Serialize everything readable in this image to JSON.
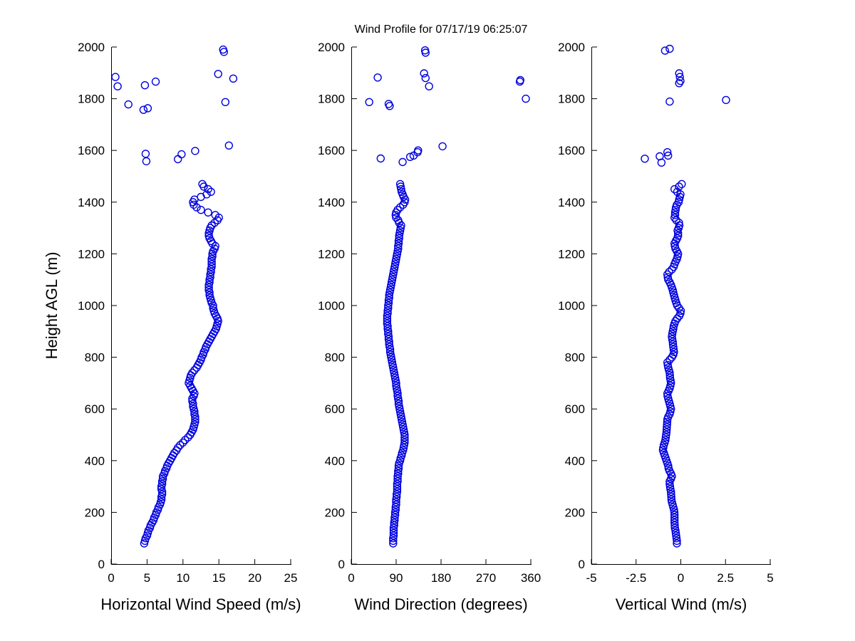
{
  "chart_data": {
    "type": "scatter",
    "title": "Wind Profile for  07/17/19 06:25:07",
    "ylabel": "Height AGL (m)",
    "ylim": [
      0,
      2000
    ],
    "yticks": [
      0,
      200,
      400,
      600,
      800,
      1000,
      1200,
      1400,
      1600,
      1800,
      2000
    ],
    "grid": "off",
    "legend": "none",
    "marker": "open-circle",
    "marker_color": "#0000e0",
    "axis_color": "#000000",
    "dense_heights": [
      80,
      90,
      100,
      110,
      120,
      130,
      140,
      150,
      160,
      170,
      180,
      190,
      200,
      210,
      220,
      230,
      240,
      250,
      260,
      270,
      280,
      290,
      300,
      310,
      320,
      330,
      340,
      350,
      360,
      370,
      380,
      390,
      400,
      410,
      420,
      430,
      440,
      450,
      460,
      470,
      480,
      490,
      500,
      510,
      520,
      530,
      540,
      550,
      560,
      570,
      580,
      590,
      600,
      610,
      620,
      630,
      640,
      650,
      660,
      670,
      680,
      690,
      700,
      710,
      720,
      730,
      740,
      750,
      760,
      770,
      780,
      790,
      800,
      810,
      820,
      830,
      840,
      850,
      860,
      870,
      880,
      890,
      900,
      910,
      920,
      930,
      940,
      950,
      960,
      970,
      980,
      990,
      1000,
      1010,
      1020,
      1030,
      1040,
      1050,
      1060,
      1070,
      1080,
      1090,
      1100,
      1110,
      1120,
      1130,
      1140,
      1150,
      1160,
      1170,
      1180,
      1190,
      1200,
      1210,
      1220,
      1230,
      1240,
      1250,
      1260,
      1270,
      1280,
      1290,
      1300,
      1310,
      1320,
      1330,
      1340,
      1350,
      1360,
      1370,
      1380,
      1390,
      1400,
      1410,
      1420,
      1430,
      1440,
      1450,
      1460,
      1470
    ],
    "panels": [
      {
        "name": "horizontal-wind-speed",
        "xlabel": "Horizontal Wind Speed (m/s)",
        "xlim": [
          0,
          25
        ],
        "xticks": [
          0,
          5,
          10,
          15,
          20,
          25
        ],
        "dense_values": [
          4.6,
          4.7,
          4.8,
          5.0,
          5.1,
          5.2,
          5.4,
          5.5,
          5.7,
          5.9,
          6.0,
          6.2,
          6.3,
          6.5,
          6.6,
          6.8,
          6.9,
          7.0,
          7.0,
          7.1,
          7.1,
          7.0,
          7.0,
          7.1,
          7.1,
          7.2,
          7.2,
          7.4,
          7.5,
          7.7,
          7.8,
          8.0,
          8.2,
          8.4,
          8.6,
          8.8,
          9.1,
          9.3,
          9.6,
          10.0,
          10.3,
          10.7,
          11.0,
          11.2,
          11.4,
          11.5,
          11.6,
          11.7,
          11.7,
          11.7,
          11.6,
          11.6,
          11.5,
          11.4,
          11.4,
          11.3,
          11.3,
          11.5,
          11.6,
          11.4,
          11.2,
          11.0,
          10.8,
          10.9,
          11.0,
          11.1,
          11.3,
          11.6,
          11.9,
          12.1,
          12.3,
          12.5,
          12.6,
          12.8,
          12.9,
          13.1,
          13.2,
          13.4,
          13.6,
          13.8,
          14.0,
          14.2,
          14.4,
          14.6,
          14.7,
          14.8,
          14.9,
          14.8,
          14.6,
          14.4,
          14.3,
          14.2,
          14.2,
          14.0,
          13.9,
          13.8,
          13.7,
          13.7,
          13.6,
          13.6,
          13.6,
          13.7,
          13.7,
          13.8,
          13.8,
          13.9,
          13.9,
          14.0,
          14.0,
          14.0,
          14.0,
          14.1,
          14.1,
          14.2,
          14.4,
          14.5,
          14.1,
          13.9,
          13.7,
          13.6,
          13.6,
          13.7,
          13.8,
          14.0,
          14.4,
          14.8,
          15.0,
          14.5,
          13.5,
          12.5,
          11.9,
          11.5,
          11.4,
          11.6,
          12.5,
          13.3,
          13.9,
          13.5,
          12.9,
          12.7
        ],
        "sparse_points": [
          [
            4.9,
            1558
          ],
          [
            9.3,
            1566
          ],
          [
            9.8,
            1585
          ],
          [
            4.8,
            1587
          ],
          [
            11.7,
            1598
          ],
          [
            16.4,
            1619
          ],
          [
            4.5,
            1757
          ],
          [
            5.1,
            1763
          ],
          [
            2.4,
            1778
          ],
          [
            15.9,
            1787
          ],
          [
            0.9,
            1848
          ],
          [
            4.7,
            1852
          ],
          [
            6.2,
            1866
          ],
          [
            17.0,
            1878
          ],
          [
            0.6,
            1884
          ],
          [
            14.9,
            1896
          ],
          [
            15.7,
            1981
          ],
          [
            15.6,
            1990
          ]
        ]
      },
      {
        "name": "wind-direction",
        "xlabel": "Wind Direction (degrees)",
        "xlim": [
          0,
          360
        ],
        "xticks": [
          0,
          90,
          180,
          270,
          360
        ],
        "dense_values": [
          84,
          84,
          84,
          85,
          85,
          85,
          85,
          86,
          86,
          87,
          87,
          88,
          88,
          89,
          89,
          90,
          90,
          90,
          91,
          91,
          92,
          92,
          92,
          92,
          93,
          93,
          93,
          94,
          94,
          95,
          95,
          96,
          98,
          99,
          101,
          102,
          104,
          105,
          106,
          107,
          107,
          107,
          107,
          106,
          105,
          104,
          103,
          102,
          101,
          100,
          99,
          98,
          97,
          96,
          95,
          95,
          94,
          93,
          93,
          92,
          91,
          90,
          90,
          89,
          88,
          87,
          86,
          85,
          84,
          83,
          82,
          81,
          80,
          79,
          78,
          78,
          77,
          76,
          76,
          75,
          75,
          74,
          74,
          73,
          73,
          72,
          72,
          72,
          72,
          73,
          73,
          74,
          74,
          75,
          75,
          76,
          76,
          77,
          78,
          79,
          80,
          81,
          82,
          83,
          84,
          85,
          86,
          87,
          88,
          89,
          90,
          91,
          92,
          93,
          94,
          94,
          95,
          95,
          96,
          96,
          97,
          98,
          99,
          100,
          96,
          94,
          90,
          89,
          90,
          93,
          98,
          104,
          107,
          108,
          105,
          103,
          101,
          100,
          99,
          98
        ],
        "sparse_points": [
          [
            103,
            1555
          ],
          [
            59,
            1569
          ],
          [
            118,
            1575
          ],
          [
            125,
            1580
          ],
          [
            133,
            1593
          ],
          [
            134,
            1600
          ],
          [
            183,
            1616
          ],
          [
            77,
            1772
          ],
          [
            75,
            1780
          ],
          [
            36,
            1787
          ],
          [
            350,
            1800
          ],
          [
            156,
            1848
          ],
          [
            338,
            1866
          ],
          [
            339,
            1872
          ],
          [
            149,
            1880
          ],
          [
            53,
            1882
          ],
          [
            146,
            1898
          ],
          [
            149,
            1978
          ],
          [
            148,
            1987
          ]
        ]
      },
      {
        "name": "vertical-wind",
        "xlabel": "Vertical Wind (m/s)",
        "xlim": [
          -5,
          5
        ],
        "xticks": [
          -5,
          -2.5,
          0,
          2.5,
          5
        ],
        "dense_values": [
          -0.22,
          -0.22,
          -0.24,
          -0.26,
          -0.28,
          -0.3,
          -0.33,
          -0.34,
          -0.35,
          -0.35,
          -0.35,
          -0.35,
          -0.36,
          -0.38,
          -0.42,
          -0.46,
          -0.5,
          -0.52,
          -0.53,
          -0.54,
          -0.55,
          -0.58,
          -0.6,
          -0.62,
          -0.62,
          -0.55,
          -0.5,
          -0.55,
          -0.63,
          -0.68,
          -0.7,
          -0.75,
          -0.8,
          -0.85,
          -0.9,
          -0.95,
          -1.0,
          -0.98,
          -0.95,
          -0.9,
          -0.86,
          -0.84,
          -0.82,
          -0.8,
          -0.79,
          -0.78,
          -0.77,
          -0.76,
          -0.75,
          -0.7,
          -0.62,
          -0.58,
          -0.55,
          -0.58,
          -0.62,
          -0.66,
          -0.7,
          -0.74,
          -0.75,
          -0.68,
          -0.62,
          -0.58,
          -0.55,
          -0.57,
          -0.6,
          -0.61,
          -0.62,
          -0.66,
          -0.7,
          -0.73,
          -0.75,
          -0.62,
          -0.5,
          -0.42,
          -0.38,
          -0.4,
          -0.42,
          -0.44,
          -0.45,
          -0.48,
          -0.5,
          -0.48,
          -0.45,
          -0.42,
          -0.4,
          -0.35,
          -0.3,
          -0.2,
          -0.08,
          -0.02,
          0.0,
          -0.1,
          -0.2,
          -0.25,
          -0.3,
          -0.34,
          -0.38,
          -0.42,
          -0.45,
          -0.5,
          -0.55,
          -0.62,
          -0.7,
          -0.73,
          -0.75,
          -0.65,
          -0.5,
          -0.4,
          -0.35,
          -0.29,
          -0.22,
          -0.18,
          -0.15,
          -0.22,
          -0.3,
          -0.33,
          -0.35,
          -0.28,
          -0.2,
          -0.15,
          -0.15,
          -0.18,
          -0.12,
          -0.08,
          -0.1,
          -0.25,
          -0.35,
          -0.32,
          -0.32,
          -0.29,
          -0.27,
          -0.22,
          -0.12,
          -0.09,
          -0.05,
          -0.02,
          -0.2,
          -0.35,
          -0.1,
          0.05
        ],
        "sparse_points": [
          [
            -1.08,
            1553
          ],
          [
            -2.01,
            1568
          ],
          [
            -1.18,
            1577
          ],
          [
            -0.71,
            1580
          ],
          [
            -0.75,
            1593
          ],
          [
            -0.62,
            1789
          ],
          [
            2.53,
            1795
          ],
          [
            -0.09,
            1860
          ],
          [
            -0.02,
            1869
          ],
          [
            -0.05,
            1884
          ],
          [
            -0.09,
            1898
          ],
          [
            -0.88,
            1986
          ],
          [
            -0.62,
            1993
          ]
        ]
      }
    ]
  }
}
